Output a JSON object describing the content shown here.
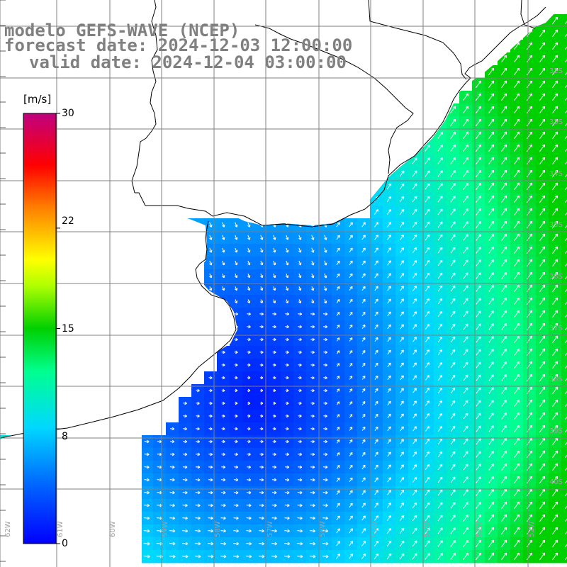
{
  "title": {
    "line1": "modelo GEFS-WAVE (NCEP)",
    "line2": "forecast date: 2024-12-03 12:00:00",
    "line3": "valid date: 2024-12-04 03:00:00"
  },
  "colorbar": {
    "unit": "[m/s]",
    "ticks": [
      {
        "label": "30",
        "value": 30
      },
      {
        "label": "22",
        "value": 22
      },
      {
        "label": "15",
        "value": 15
      },
      {
        "label": "8",
        "value": 8
      },
      {
        "label": "0",
        "value": 0
      }
    ],
    "colors": [
      "#0000ff",
      "#0060ff",
      "#00d8ff",
      "#00ff80",
      "#00e000",
      "#ffff00",
      "#ff8000",
      "#ff0000",
      "#c00080"
    ]
  },
  "grid": {
    "lat_labels": [
      "32S",
      "33S",
      "34S",
      "35S",
      "36S",
      "37S",
      "38S",
      "39S",
      "40S"
    ],
    "lon_labels": [
      "62W",
      "61W",
      "60W",
      "59W",
      "58W",
      "57W",
      "56W",
      "55W",
      "54W",
      "53W",
      "52W"
    ]
  },
  "colors": {
    "land": "#ffffff",
    "coast": "#000000",
    "grid": "#808080",
    "title": "#808080",
    "arrow": "#ffffff"
  }
}
